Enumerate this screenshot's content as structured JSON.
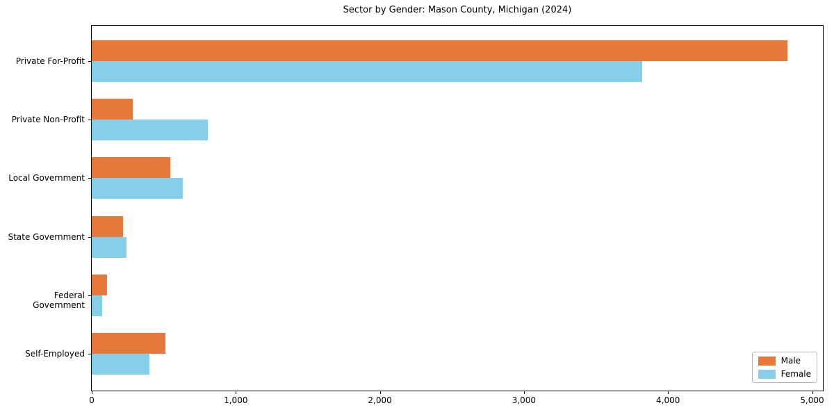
{
  "title": "Sector by Gender: Mason County, Michigan (2024)",
  "colors": {
    "male": "#e8793c",
    "female": "#87ceeb",
    "spine": "#000000",
    "legend_border": "#b7b7b7",
    "background": "#ffffff"
  },
  "chart_data": {
    "type": "bar",
    "orientation": "horizontal",
    "title": "Sector by Gender: Mason County, Michigan (2024)",
    "xlabel": "",
    "ylabel": "",
    "grid": false,
    "categories": [
      "Private For-Profit",
      "Private Non-Profit",
      "Local Government",
      "State Government",
      "Federal Government",
      "Self-Employed"
    ],
    "series": [
      {
        "name": "Male",
        "color_key": "male",
        "values": [
          4830,
          285,
          545,
          215,
          105,
          510
        ]
      },
      {
        "name": "Female",
        "color_key": "female",
        "values": [
          3820,
          805,
          630,
          240,
          70,
          400
        ]
      }
    ],
    "xlim": [
      0,
      5075
    ],
    "xticks": [
      {
        "value": 0,
        "label": "0"
      },
      {
        "value": 1000,
        "label": "1,000"
      },
      {
        "value": 2000,
        "label": "2,000"
      },
      {
        "value": 3000,
        "label": "3,000"
      },
      {
        "value": 4000,
        "label": "4,000"
      },
      {
        "value": 5000,
        "label": "5,000"
      }
    ],
    "legend": {
      "position": "lower right",
      "entries": [
        "Male",
        "Female"
      ]
    }
  }
}
